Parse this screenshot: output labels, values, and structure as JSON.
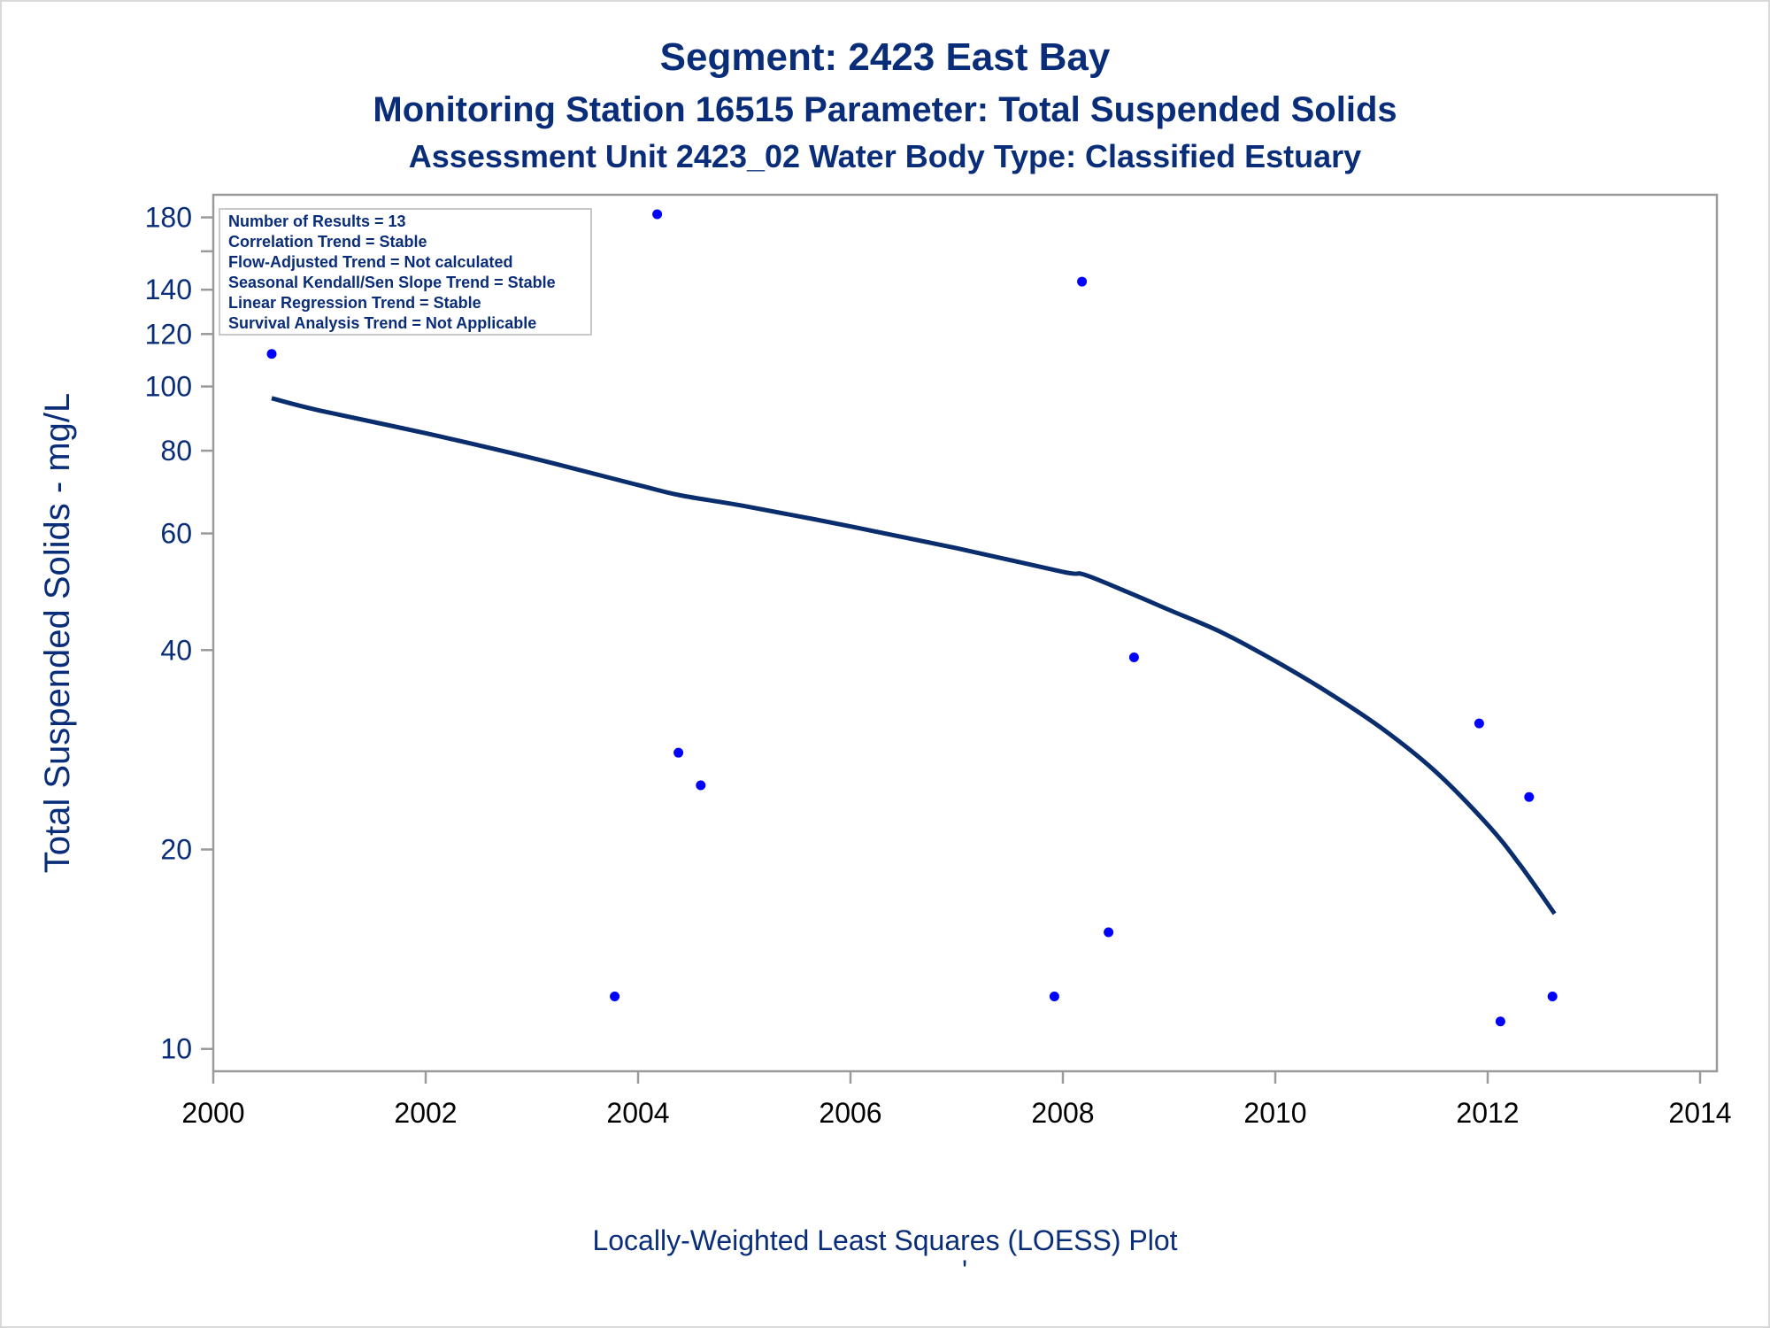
{
  "chart_data": {
    "type": "scatter",
    "title": "Segment: 2423  East Bay",
    "subtitle": "Monitoring Station 16515 Parameter: Total Suspended Solids",
    "subtitle2": "Assessment Unit 2423_02   Water Body Type: Classified Estuary",
    "xlabel": "",
    "ylabel": "Total Suspended Solids - mg/L",
    "footnote": "Locally-Weighted Least Squares (LOESS) Plot",
    "footnote_mark": "'",
    "x_scale": "linear",
    "y_scale": "log",
    "xlim": [
      2000,
      2014
    ],
    "ylim": [
      9.6,
      190
    ],
    "x_ticks": [
      2000,
      2002,
      2004,
      2006,
      2008,
      2010,
      2012,
      2014
    ],
    "y_ticks": [
      10,
      20,
      40,
      60,
      80,
      100,
      120,
      140,
      180
    ],
    "y_minor_ticks": [
      160
    ],
    "grid": false,
    "legend_position": "top-left",
    "stats": [
      "Number of Results = 13",
      "Correlation Trend = Stable",
      "Flow-Adjusted Trend = Not calculated",
      "Seasonal Kendall/Sen Slope Trend = Stable",
      "Linear Regression Trend = Stable",
      "Survival Analysis Trend = Not Applicable"
    ],
    "series": [
      {
        "type": "scatter",
        "points": [
          {
            "x": 2000.55,
            "y": 112
          },
          {
            "x": 2003.78,
            "y": 12
          },
          {
            "x": 2004.18,
            "y": 182
          },
          {
            "x": 2004.38,
            "y": 28
          },
          {
            "x": 2004.59,
            "y": 25
          },
          {
            "x": 2007.92,
            "y": 12
          },
          {
            "x": 2008.18,
            "y": 144
          },
          {
            "x": 2008.43,
            "y": 15
          },
          {
            "x": 2008.67,
            "y": 39
          },
          {
            "x": 2011.92,
            "y": 31
          },
          {
            "x": 2012.12,
            "y": 11
          },
          {
            "x": 2012.39,
            "y": 24
          },
          {
            "x": 2012.61,
            "y": 12
          }
        ]
      },
      {
        "type": "line",
        "points": [
          {
            "x": 2000.55,
            "y": 96
          },
          {
            "x": 2001,
            "y": 92
          },
          {
            "x": 2002,
            "y": 85
          },
          {
            "x": 2003,
            "y": 78
          },
          {
            "x": 2004,
            "y": 71
          },
          {
            "x": 2004.4,
            "y": 68.5
          },
          {
            "x": 2005,
            "y": 66
          },
          {
            "x": 2006,
            "y": 61.5
          },
          {
            "x": 2007,
            "y": 57
          },
          {
            "x": 2008,
            "y": 52.5
          },
          {
            "x": 2008.2,
            "y": 52
          },
          {
            "x": 2008.6,
            "y": 49
          },
          {
            "x": 2009,
            "y": 46
          },
          {
            "x": 2009.5,
            "y": 42.5
          },
          {
            "x": 2010,
            "y": 38.5
          },
          {
            "x": 2010.5,
            "y": 34.5
          },
          {
            "x": 2011,
            "y": 30.5
          },
          {
            "x": 2011.5,
            "y": 26.3
          },
          {
            "x": 2012,
            "y": 21.8
          },
          {
            "x": 2012.3,
            "y": 19
          },
          {
            "x": 2012.63,
            "y": 16
          }
        ]
      }
    ],
    "colors": {
      "text": "#0a2d7a",
      "marker": "#0000ff",
      "line": "#0a2d6e",
      "axis": "#9a9a9a",
      "frame": "#d9d9d9"
    }
  }
}
